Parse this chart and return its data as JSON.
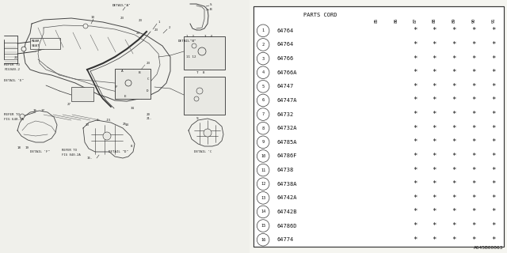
{
  "diagram_code": "A645B00063",
  "parts": [
    [
      "1",
      "64764",
      "",
      "",
      "*",
      "*",
      "*",
      "*",
      "*"
    ],
    [
      "2",
      "64764",
      "",
      "",
      "*",
      "*",
      "*",
      "*",
      "*"
    ],
    [
      "3",
      "64766",
      "",
      "",
      "*",
      "*",
      "*",
      "*",
      "*"
    ],
    [
      "4",
      "64766A",
      "",
      "",
      "*",
      "*",
      "*",
      "*",
      "*"
    ],
    [
      "5",
      "64747",
      "",
      "",
      "*",
      "*",
      "*",
      "*",
      "*"
    ],
    [
      "6",
      "64747A",
      "",
      "",
      "*",
      "*",
      "*",
      "*",
      "*"
    ],
    [
      "7",
      "64732",
      "",
      "",
      "*",
      "*",
      "*",
      "*",
      "*"
    ],
    [
      "8",
      "64732A",
      "",
      "",
      "*",
      "*",
      "*",
      "*",
      "*"
    ],
    [
      "9",
      "64785A",
      "",
      "",
      "*",
      "*",
      "*",
      "*",
      "*"
    ],
    [
      "10",
      "64786F",
      "",
      "",
      "*",
      "*",
      "*",
      "*",
      "*"
    ],
    [
      "11",
      "64738",
      "",
      "",
      "*",
      "*",
      "*",
      "*",
      "*"
    ],
    [
      "12",
      "64738A",
      "",
      "",
      "*",
      "*",
      "*",
      "*",
      "*"
    ],
    [
      "13",
      "64742A",
      "",
      "",
      "*",
      "*",
      "*",
      "*",
      "*"
    ],
    [
      "14",
      "64742B",
      "",
      "",
      "*",
      "*",
      "*",
      "*",
      "*"
    ],
    [
      "15",
      "64786D",
      "",
      "",
      "*",
      "*",
      "*",
      "*",
      "*"
    ],
    [
      "16",
      "64774",
      "",
      "",
      "*",
      "*",
      "*",
      "*",
      "*"
    ]
  ],
  "col_headers": [
    "",
    "PARTS CORD",
    "85",
    "86",
    "87",
    "88",
    "89",
    "90",
    "91"
  ],
  "bg_color": "#f5f5f0",
  "line_color": "#444444",
  "table_bg": "#ffffff"
}
